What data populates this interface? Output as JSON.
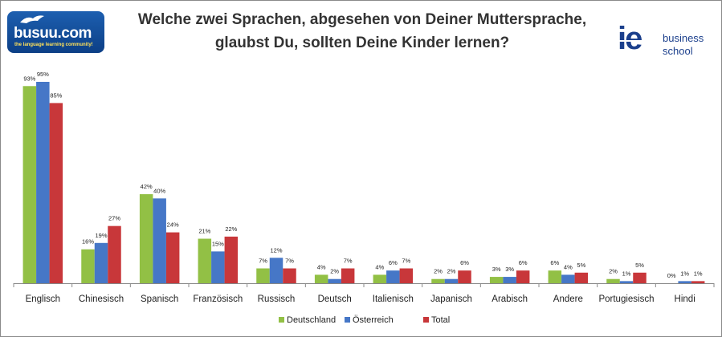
{
  "title": "Welche zwei Sprachen, abgesehen von Deiner Muttersprache, glaubst Du, sollten Deine Kinder lernen?",
  "logos": {
    "busuu": {
      "name": "busuu.com",
      "tagline": "the language learning community!"
    },
    "ie": {
      "mark": "ie",
      "line1": "business",
      "line2": "school"
    }
  },
  "chart_data": {
    "type": "bar",
    "title": "Welche zwei Sprachen, abgesehen von Deiner Muttersprache, glaubst Du, sollten Deine Kinder lernen?",
    "xlabel": "",
    "ylabel": "",
    "ylim": [
      0,
      100
    ],
    "categories": [
      "Englisch",
      "Chinesisch",
      "Spanisch",
      "Französisch",
      "Russisch",
      "Deutsch",
      "Italienisch",
      "Japanisch",
      "Arabisch",
      "Andere",
      "Portugiesisch",
      "Hindi"
    ],
    "series": [
      {
        "name": "Deutschland",
        "color": "#92c045",
        "values": [
          93,
          16,
          42,
          21,
          7,
          4,
          4,
          2,
          3,
          6,
          2,
          0
        ]
      },
      {
        "name": "Österreich",
        "color": "#4677c7",
        "values": [
          95,
          19,
          40,
          15,
          12,
          2,
          6,
          2,
          3,
          4,
          1,
          1
        ]
      },
      {
        "name": "Total",
        "color": "#c8373a",
        "values": [
          85,
          27,
          24,
          22,
          7,
          7,
          7,
          6,
          6,
          5,
          5,
          1
        ]
      }
    ],
    "legend_position": "bottom"
  }
}
